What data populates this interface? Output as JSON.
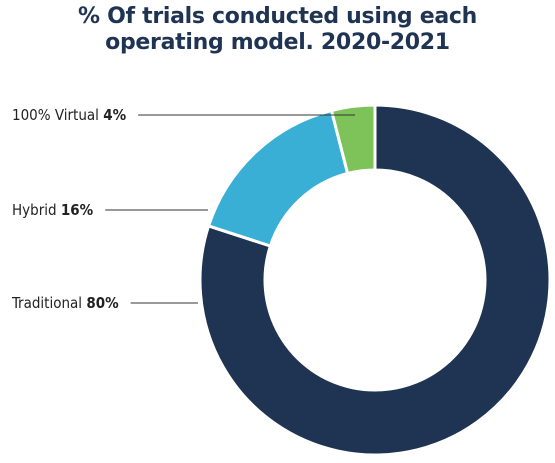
{
  "chart_data": {
    "type": "pie",
    "title": "% Of trials conducted using each operating model. 2020-2021",
    "categories": [
      "Traditional",
      "Hybrid",
      "100% Virtual"
    ],
    "values": [
      80,
      16,
      4
    ],
    "value_labels": [
      "80%",
      "16%",
      "4%"
    ],
    "colors": [
      "#1f3352",
      "#3aafd6",
      "#7dc35a"
    ]
  }
}
